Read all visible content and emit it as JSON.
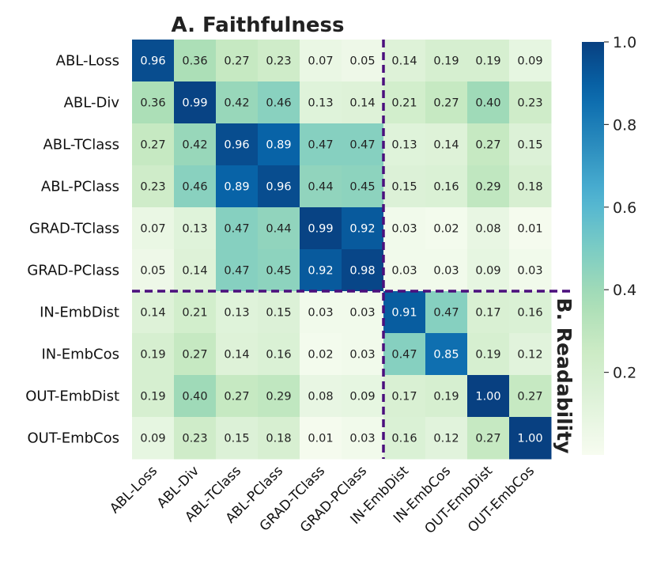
{
  "chart_data": {
    "type": "heatmap",
    "title": "A. Faithfulness",
    "side_title": "B. Readability",
    "labels": [
      "ABL-Loss",
      "ABL-Div",
      "ABL-TClass",
      "ABL-PClass",
      "GRAD-TClass",
      "GRAD-PClass",
      "IN-EmbDist",
      "IN-EmbCos",
      "OUT-EmbDist",
      "OUT-EmbCos"
    ],
    "values": [
      [
        0.96,
        0.36,
        0.27,
        0.23,
        0.07,
        0.05,
        0.14,
        0.19,
        0.19,
        0.09
      ],
      [
        0.36,
        0.99,
        0.42,
        0.46,
        0.13,
        0.14,
        0.21,
        0.27,
        0.4,
        0.23
      ],
      [
        0.27,
        0.42,
        0.96,
        0.89,
        0.47,
        0.47,
        0.13,
        0.14,
        0.27,
        0.15
      ],
      [
        0.23,
        0.46,
        0.89,
        0.96,
        0.44,
        0.45,
        0.15,
        0.16,
        0.29,
        0.18
      ],
      [
        0.07,
        0.13,
        0.47,
        0.44,
        0.99,
        0.92,
        0.03,
        0.02,
        0.08,
        0.01
      ],
      [
        0.05,
        0.14,
        0.47,
        0.45,
        0.92,
        0.98,
        0.03,
        0.03,
        0.09,
        0.03
      ],
      [
        0.14,
        0.21,
        0.13,
        0.15,
        0.03,
        0.03,
        0.91,
        0.47,
        0.17,
        0.16
      ],
      [
        0.19,
        0.27,
        0.14,
        0.16,
        0.02,
        0.03,
        0.47,
        0.85,
        0.19,
        0.12
      ],
      [
        0.19,
        0.4,
        0.27,
        0.29,
        0.08,
        0.09,
        0.17,
        0.19,
        1.0,
        0.27
      ],
      [
        0.09,
        0.23,
        0.15,
        0.18,
        0.01,
        0.03,
        0.16,
        0.12,
        0.27,
        1.0
      ]
    ],
    "value_format": "0.00",
    "colormap": "GnBu",
    "colorbar": {
      "min": 0.0,
      "max": 1.0,
      "ticks": [
        "0.2",
        "0.4",
        "0.6",
        "0.8",
        "1.0"
      ]
    },
    "divider": {
      "after_row": 6,
      "after_col": 6,
      "style": "dashed",
      "color": "#4b0f7d"
    }
  }
}
